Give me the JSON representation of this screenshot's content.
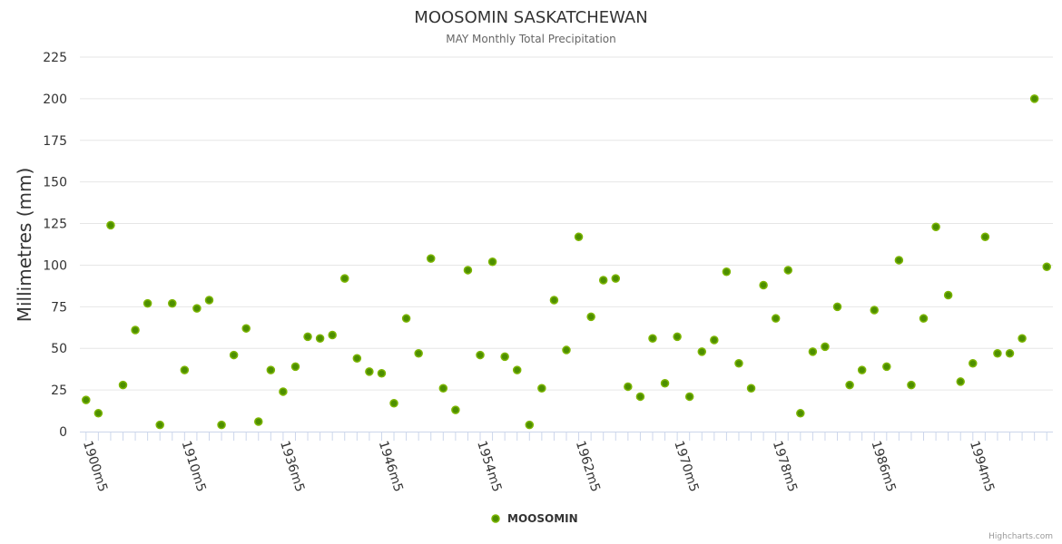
{
  "chart_data": {
    "type": "scatter",
    "title": "MOOSOMIN SASKATCHEWAN",
    "subtitle": "MAY Monthly Total Precipitation",
    "ylabel": "Millimetres (mm)",
    "xlabel": "",
    "ylim": [
      0,
      225
    ],
    "yticks": [
      0,
      25,
      50,
      75,
      100,
      125,
      150,
      175,
      200,
      225
    ],
    "grid": true,
    "legend_position": "bottom-center",
    "point_count": 79,
    "x_tick_labels": [
      {
        "index": 0,
        "label": "1900m5"
      },
      {
        "index": 8,
        "label": "1910m5"
      },
      {
        "index": 16,
        "label": "1936m5"
      },
      {
        "index": 24,
        "label": "1946m5"
      },
      {
        "index": 32,
        "label": "1954m5"
      },
      {
        "index": 40,
        "label": "1962m5"
      },
      {
        "index": 48,
        "label": "1970m5"
      },
      {
        "index": 56,
        "label": "1978m5"
      },
      {
        "index": 64,
        "label": "1986m5"
      },
      {
        "index": 72,
        "label": "1994m5"
      }
    ],
    "series": [
      {
        "name": "MOOSOMIN",
        "color": "#4d8f00",
        "border_color": "#7cb500",
        "values": [
          19,
          11,
          124,
          28,
          61,
          77,
          4,
          77,
          37,
          74,
          79,
          4,
          46,
          62,
          6,
          37,
          24,
          39,
          57,
          56,
          58,
          92,
          44,
          36,
          35,
          17,
          68,
          47,
          104,
          26,
          13,
          97,
          46,
          102,
          45,
          37,
          4,
          26,
          79,
          49,
          117,
          69,
          91,
          92,
          27,
          21,
          56,
          29,
          57,
          21,
          48,
          55,
          96,
          41,
          26,
          88,
          68,
          97,
          11,
          48,
          51,
          75,
          28,
          37,
          73,
          39,
          103,
          28,
          68,
          123,
          82,
          30,
          41,
          117,
          47,
          47,
          56,
          200,
          99
        ]
      }
    ]
  },
  "credits": "Highcharts.com"
}
